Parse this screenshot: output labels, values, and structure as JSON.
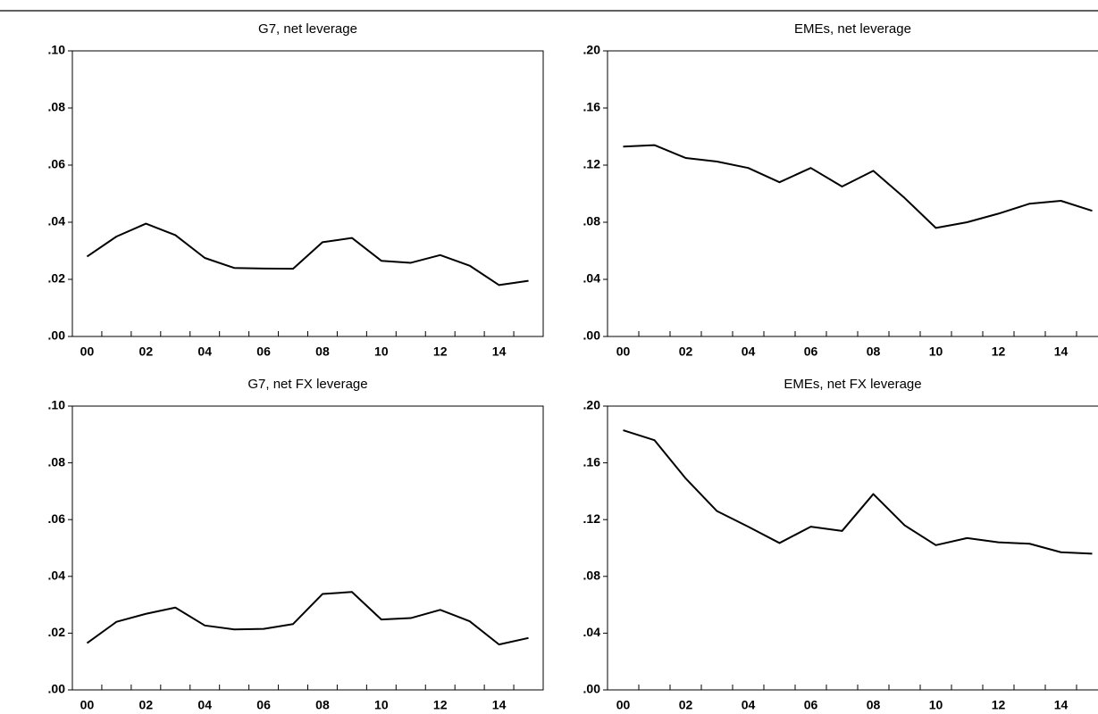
{
  "chart_data": [
    {
      "type": "line",
      "title": "G7, net leverage",
      "color": "#000000",
      "categories": [
        "00",
        null,
        "02",
        null,
        "04",
        null,
        "06",
        null,
        "08",
        null,
        "10",
        null,
        "12",
        null,
        "14",
        null
      ],
      "values": [
        0.028,
        0.035,
        0.0395,
        0.0355,
        0.0275,
        0.024,
        0.0238,
        0.0237,
        0.033,
        0.0345,
        0.0265,
        0.0258,
        0.0285,
        0.0248,
        0.018,
        0.0195
      ],
      "ylim": [
        0,
        0.1
      ],
      "yticks": [
        {
          "value": 0,
          "label": ".00"
        },
        {
          "value": 0.02,
          "label": ".02"
        },
        {
          "value": 0.04,
          "label": ".04"
        },
        {
          "value": 0.06,
          "label": ".06"
        },
        {
          "value": 0.08,
          "label": ".08"
        },
        {
          "value": 0.1,
          "label": ".10"
        }
      ]
    },
    {
      "type": "line",
      "title": "EMEs, net leverage",
      "color": "#000000",
      "categories": [
        "00",
        null,
        "02",
        null,
        "04",
        null,
        "06",
        null,
        "08",
        null,
        "10",
        null,
        "12",
        null,
        "14",
        null
      ],
      "values": [
        0.133,
        0.134,
        0.125,
        0.1225,
        0.118,
        0.108,
        0.118,
        0.105,
        0.116,
        0.097,
        0.076,
        0.08,
        0.086,
        0.093,
        0.095,
        0.088
      ],
      "ylim": [
        0,
        0.2
      ],
      "yticks": [
        {
          "value": 0,
          "label": ".00"
        },
        {
          "value": 0.04,
          "label": ".04"
        },
        {
          "value": 0.08,
          "label": ".08"
        },
        {
          "value": 0.12,
          "label": ".12"
        },
        {
          "value": 0.16,
          "label": ".16"
        },
        {
          "value": 0.2,
          "label": ".20"
        }
      ]
    },
    {
      "type": "line",
      "title": "G7, net FX leverage",
      "color": "#000000",
      "categories": [
        "00",
        null,
        "02",
        null,
        "04",
        null,
        "06",
        null,
        "08",
        null,
        "10",
        null,
        "12",
        null,
        "14",
        null
      ],
      "values": [
        0.0165,
        0.024,
        0.0268,
        0.029,
        0.0227,
        0.0213,
        0.0215,
        0.0232,
        0.0338,
        0.0345,
        0.0248,
        0.0253,
        0.0282,
        0.0242,
        0.016,
        0.0183
      ],
      "ylim": [
        0,
        0.1
      ],
      "yticks": [
        {
          "value": 0,
          "label": ".00"
        },
        {
          "value": 0.02,
          "label": ".02"
        },
        {
          "value": 0.04,
          "label": ".04"
        },
        {
          "value": 0.06,
          "label": ".06"
        },
        {
          "value": 0.08,
          "label": ".08"
        },
        {
          "value": 0.1,
          "label": ".10"
        }
      ]
    },
    {
      "type": "line",
      "title": "EMEs, net FX leverage",
      "color": "#000000",
      "categories": [
        "00",
        null,
        "02",
        null,
        "04",
        null,
        "06",
        null,
        "08",
        null,
        "10",
        null,
        "12",
        null,
        "14",
        null
      ],
      "values": [
        0.183,
        0.176,
        0.149,
        0.126,
        0.115,
        0.1035,
        0.115,
        0.112,
        0.138,
        0.116,
        0.102,
        0.107,
        0.104,
        0.103,
        0.097,
        0.096
      ],
      "ylim": [
        0,
        0.2
      ],
      "yticks": [
        {
          "value": 0,
          "label": ".00"
        },
        {
          "value": 0.04,
          "label": ".04"
        },
        {
          "value": 0.08,
          "label": ".08"
        },
        {
          "value": 0.12,
          "label": ".12"
        },
        {
          "value": 0.16,
          "label": ".16"
        },
        {
          "value": 0.2,
          "label": ".20"
        }
      ]
    }
  ]
}
